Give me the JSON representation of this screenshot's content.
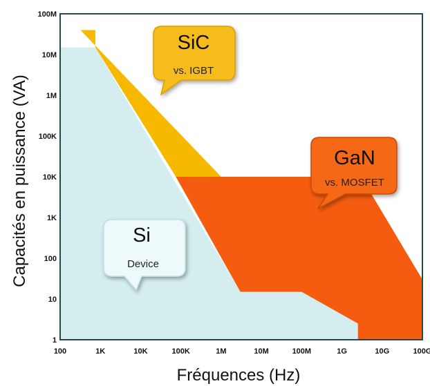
{
  "chart_data": {
    "type": "area",
    "xlabel": "Fréquences (Hz)",
    "ylabel": "Capacités en puissance (VA)",
    "x_scale": "log",
    "y_scale": "log",
    "xlim": [
      100,
      100000000000
    ],
    "ylim": [
      1,
      100000000
    ],
    "x_ticks": [
      {
        "value": 100,
        "label": "100"
      },
      {
        "value": 1000,
        "label": "1K"
      },
      {
        "value": 10000,
        "label": "10K"
      },
      {
        "value": 100000,
        "label": "100K"
      },
      {
        "value": 1000000,
        "label": "1M"
      },
      {
        "value": 10000000,
        "label": "10M"
      },
      {
        "value": 100000000,
        "label": "100M"
      },
      {
        "value": 1000000000,
        "label": "1G"
      },
      {
        "value": 10000000000,
        "label": "10G"
      },
      {
        "value": 100000000000,
        "label": "100G"
      }
    ],
    "y_ticks": [
      {
        "value": 1,
        "label": "1"
      },
      {
        "value": 10,
        "label": "10"
      },
      {
        "value": 100,
        "label": "100"
      },
      {
        "value": 1000,
        "label": "1K"
      },
      {
        "value": 10000,
        "label": "10K"
      },
      {
        "value": 100000,
        "label": "100K"
      },
      {
        "value": 1000000,
        "label": "1M"
      },
      {
        "value": 10000000,
        "label": "10M"
      },
      {
        "value": 100000000,
        "label": "100M"
      }
    ],
    "grid": false,
    "regions": [
      {
        "id": "si",
        "color": "#d4eef0",
        "points": [
          [
            100,
            1
          ],
          [
            100,
            15000000
          ],
          [
            750,
            15000000
          ],
          [
            3000000,
            15
          ],
          [
            100000000,
            15
          ],
          [
            2500000000,
            2.5
          ],
          [
            2500000000,
            1
          ]
        ],
        "callout": {
          "title": "Si",
          "subtitle": "Device",
          "fill": "#eef9fa",
          "stroke": "#c4dfe2"
        }
      },
      {
        "id": "sic",
        "color": "#f7b800",
        "points": [
          [
            320,
            40000000
          ],
          [
            750,
            40000000
          ],
          [
            750,
            15000000
          ],
          [
            75000,
            10000
          ],
          [
            1000000,
            10000
          ]
        ],
        "callout": {
          "title": "SiC",
          "subtitle": "vs. IGBT",
          "fill": "#f6bc1e",
          "stroke": "#d99d00"
        }
      },
      {
        "id": "gan",
        "color": "#f65c0f",
        "points": [
          [
            75000,
            10000
          ],
          [
            3000000000,
            10000
          ],
          [
            100000000000,
            30
          ],
          [
            100000000000,
            1
          ],
          [
            2500000000,
            1
          ],
          [
            2500000000,
            2.5
          ],
          [
            100000000,
            15
          ],
          [
            3000000,
            15
          ]
        ],
        "callout": {
          "title": "GaN",
          "subtitle": "vs. MOSFET",
          "fill": "#f56818",
          "stroke": "#c94a05"
        }
      }
    ],
    "colors": {
      "frame": "#1f4a4f",
      "background": "#ffffff"
    }
  }
}
